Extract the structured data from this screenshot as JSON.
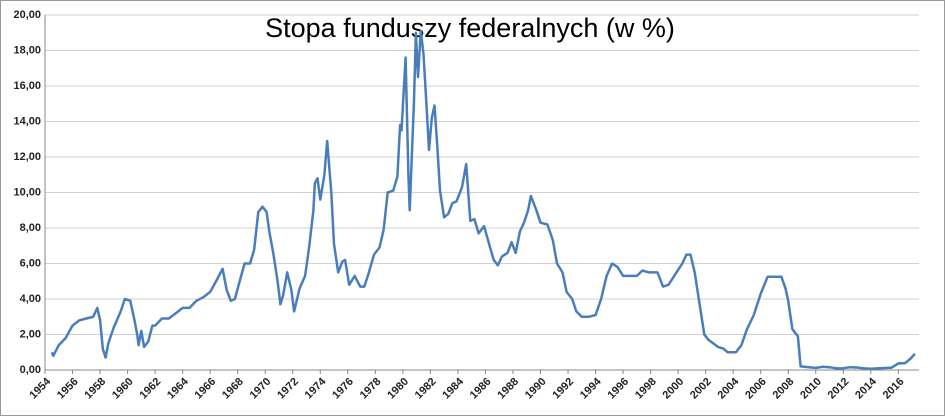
{
  "chart_data": {
    "type": "line",
    "title": "Stopa funduszy federalnych (w %)",
    "series": [
      {
        "color": "#4a7ebb",
        "x": [
          1954.5,
          1954.6,
          1955,
          1955.5,
          1956,
          1956.5,
          1957,
          1957.5,
          1957.8,
          1958,
          1958.2,
          1958.4,
          1958.6,
          1959,
          1959.5,
          1959.8,
          1960.2,
          1960.5,
          1960.7,
          1960.8,
          1961,
          1961.2,
          1961.5,
          1961.8,
          1962,
          1962.5,
          1963,
          1963.5,
          1964,
          1964.5,
          1965,
          1965.5,
          1966,
          1966.5,
          1966.9,
          1967.2,
          1967.5,
          1967.8,
          1968,
          1968.5,
          1968.9,
          1969.2,
          1969.5,
          1969.8,
          1970.1,
          1970.3,
          1970.6,
          1970.9,
          1971.1,
          1971.3,
          1971.6,
          1971.9,
          1972.1,
          1972.5,
          1972.9,
          1973.2,
          1973.5,
          1973.6,
          1973.8,
          1974,
          1974.3,
          1974.5,
          1974.8,
          1975,
          1975.3,
          1975.6,
          1975.8,
          1976.1,
          1976.5,
          1976.9,
          1977.2,
          1977.5,
          1977.9,
          1978.3,
          1978.6,
          1978.9,
          1979.3,
          1979.6,
          1979.8,
          1979.9,
          1980.2,
          1980.4,
          1980.5,
          1980.8,
          1980.95,
          1981.1,
          1981.3,
          1981.5,
          1981.7,
          1981.9,
          1982.1,
          1982.3,
          1982.5,
          1982.7,
          1983,
          1983.3,
          1983.6,
          1983.9,
          1984.3,
          1984.6,
          1984.9,
          1985.2,
          1985.5,
          1985.9,
          1986.3,
          1986.6,
          1986.9,
          1987.2,
          1987.6,
          1987.9,
          1988.2,
          1988.5,
          1988.8,
          1989.1,
          1989.3,
          1989.7,
          1990,
          1990.5,
          1990.9,
          1991.2,
          1991.6,
          1991.9,
          1992.3,
          1992.6,
          1993,
          1993.5,
          1994,
          1994.4,
          1994.8,
          1995.2,
          1995.6,
          1996,
          1996.5,
          1997,
          1997.4,
          1997.9,
          1998.5,
          1998.9,
          1999.3,
          1999.8,
          2000.3,
          2000.6,
          2000.9,
          2001.2,
          2001.5,
          2001.9,
          2002.2,
          2002.9,
          2003.3,
          2003.6,
          2004.2,
          2004.6,
          2005,
          2005.5,
          2006,
          2006.5,
          2007,
          2007.5,
          2007.8,
          2008,
          2008.3,
          2008.7,
          2008.9,
          2009.5,
          2010,
          2010.5,
          2011,
          2011.5,
          2012,
          2012.5,
          2013,
          2013.5,
          2014,
          2014.5,
          2015,
          2015.5,
          2016,
          2016.5,
          2016.9,
          2017.2
        ],
        "values": [
          1.0,
          0.8,
          1.4,
          1.8,
          2.5,
          2.8,
          2.9,
          3.0,
          3.5,
          2.8,
          1.2,
          0.7,
          1.5,
          2.4,
          3.3,
          4.0,
          3.9,
          2.8,
          2.0,
          1.4,
          2.2,
          1.3,
          1.6,
          2.5,
          2.5,
          2.9,
          2.9,
          3.2,
          3.5,
          3.5,
          3.9,
          4.1,
          4.4,
          5.1,
          5.7,
          4.5,
          3.9,
          4.0,
          4.6,
          6.0,
          6.0,
          6.8,
          8.9,
          9.2,
          8.9,
          7.8,
          6.5,
          5.0,
          3.7,
          4.2,
          5.5,
          4.5,
          3.3,
          4.6,
          5.3,
          7.0,
          9.0,
          10.5,
          10.8,
          9.6,
          11.0,
          12.9,
          10.0,
          7.1,
          5.5,
          6.1,
          6.2,
          4.8,
          5.3,
          4.7,
          4.7,
          5.4,
          6.5,
          6.9,
          7.9,
          10.0,
          10.1,
          10.9,
          13.8,
          13.5,
          17.6,
          11.0,
          9.0,
          15.0,
          19.0,
          16.5,
          19.1,
          17.8,
          15.1,
          12.4,
          14.2,
          14.9,
          12.6,
          10.1,
          8.6,
          8.8,
          9.4,
          9.5,
          10.3,
          11.6,
          8.4,
          8.5,
          7.7,
          8.1,
          7.0,
          6.2,
          5.9,
          6.4,
          6.6,
          7.2,
          6.6,
          7.8,
          8.3,
          9.0,
          9.8,
          9.0,
          8.3,
          8.2,
          7.3,
          6.0,
          5.5,
          4.4,
          4.0,
          3.3,
          3.0,
          3.0,
          3.1,
          4.0,
          5.3,
          6.0,
          5.8,
          5.3,
          5.3,
          5.3,
          5.6,
          5.5,
          5.5,
          4.7,
          4.8,
          5.4,
          6.0,
          6.5,
          6.5,
          5.5,
          4.0,
          2.0,
          1.7,
          1.3,
          1.2,
          1.0,
          1.0,
          1.4,
          2.3,
          3.1,
          4.3,
          5.25,
          5.25,
          5.25,
          4.6,
          3.9,
          2.3,
          1.9,
          0.2,
          0.16,
          0.12,
          0.18,
          0.16,
          0.09,
          0.1,
          0.16,
          0.14,
          0.09,
          0.07,
          0.09,
          0.11,
          0.13,
          0.37,
          0.39,
          0.65,
          0.91
        ]
      }
    ],
    "xlim": [
      1954,
      2017.5
    ],
    "xticks": [
      1954,
      1956,
      1958,
      1960,
      1962,
      1964,
      1966,
      1968,
      1970,
      1972,
      1974,
      1976,
      1978,
      1980,
      1982,
      1984,
      1986,
      1988,
      1990,
      1992,
      1994,
      1996,
      1998,
      2000,
      2002,
      2004,
      2006,
      2008,
      2010,
      2012,
      2014,
      2016
    ],
    "ylim": [
      0,
      20
    ],
    "yticks": [
      {
        "value": 0,
        "label": "0,00"
      },
      {
        "value": 2,
        "label": "2,00"
      },
      {
        "value": 4,
        "label": "4,00"
      },
      {
        "value": 6,
        "label": "6,00"
      },
      {
        "value": 8,
        "label": "8,00"
      },
      {
        "value": 10,
        "label": "10,00"
      },
      {
        "value": 12,
        "label": "12,00"
      },
      {
        "value": 14,
        "label": "14,00"
      },
      {
        "value": 16,
        "label": "16,00"
      },
      {
        "value": 18,
        "label": "18,00"
      },
      {
        "value": 20,
        "label": "20,00"
      }
    ],
    "grid": true
  }
}
